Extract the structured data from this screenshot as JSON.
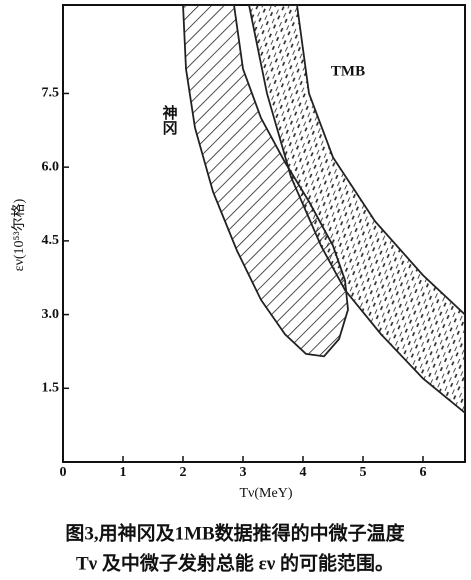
{
  "chart_data": {
    "type": "region",
    "x_label": "Tν(MeY)",
    "y_label": "εν(10⁵³尔格)",
    "caption": [
      "图3,用神冈及1MB数据推得的中微子温度",
      "Tν 及中微子发射总能 εν 的可能范围。"
    ],
    "xlim": [
      0,
      6.7
    ],
    "ylim": [
      0,
      9.3
    ],
    "xticks": [
      0,
      1,
      2,
      3,
      4,
      5,
      6
    ],
    "yticks": [
      1.5,
      {
        "value": 3,
        "label": "3.0"
      },
      4.5,
      {
        "value": 6,
        "label": "6.0"
      },
      7.5
    ],
    "color": "#222",
    "series": [
      {
        "name": "神冈",
        "pattern": "hatch",
        "x": [
          2.0,
          2.05,
          2.2,
          2.5,
          2.9,
          3.3,
          3.7,
          4.05,
          4.35,
          4.6,
          4.75,
          4.7,
          4.5,
          4.1,
          3.7,
          3.3,
          3.0,
          2.85
        ],
        "y": [
          9.3,
          8.0,
          6.8,
          5.5,
          4.3,
          3.3,
          2.6,
          2.2,
          2.15,
          2.5,
          3.1,
          3.7,
          4.4,
          5.3,
          6.1,
          7.0,
          8.0,
          9.3
        ]
      },
      {
        "name": "TMB",
        "pattern": "dash",
        "x": [
          3.1,
          3.4,
          3.8,
          4.3,
          4.7,
          5.3,
          6.0,
          6.7,
          6.7,
          6.0,
          5.2,
          4.5,
          4.1,
          3.9
        ],
        "y": [
          9.3,
          7.5,
          5.8,
          4.4,
          3.5,
          2.6,
          1.7,
          1.0,
          3.0,
          3.8,
          4.9,
          6.2,
          7.5,
          9.3
        ]
      }
    ]
  }
}
